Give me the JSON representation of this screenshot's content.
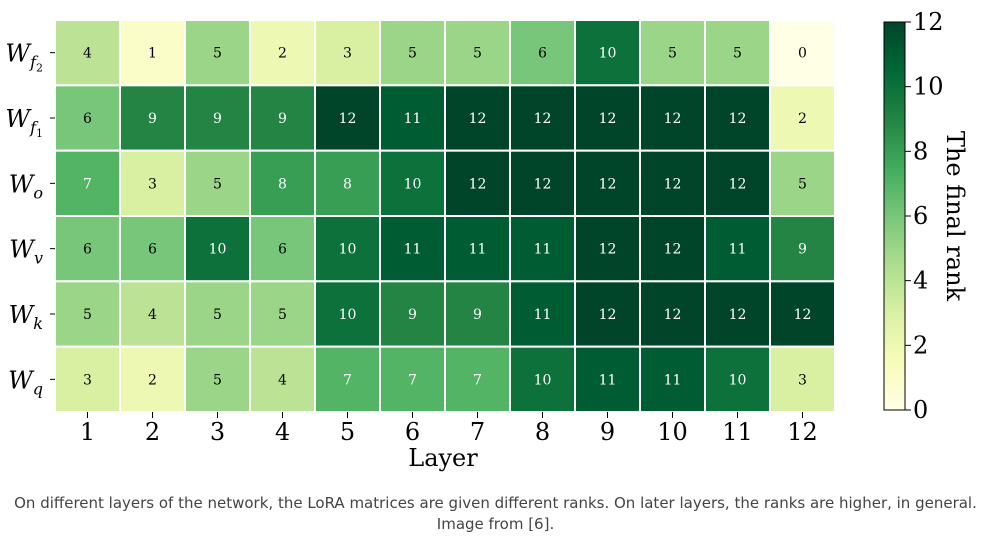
{
  "chart_data": {
    "type": "heatmap",
    "xlabel": "Layer",
    "x_categories": [
      "1",
      "2",
      "3",
      "4",
      "5",
      "6",
      "7",
      "8",
      "9",
      "10",
      "11",
      "12"
    ],
    "y_categories": [
      {
        "base": "W",
        "sub": "f",
        "subsub": "2"
      },
      {
        "base": "W",
        "sub": "f",
        "subsub": "1"
      },
      {
        "base": "W",
        "sub": "o",
        "subsub": ""
      },
      {
        "base": "W",
        "sub": "v",
        "subsub": ""
      },
      {
        "base": "W",
        "sub": "k",
        "subsub": ""
      },
      {
        "base": "W",
        "sub": "q",
        "subsub": ""
      }
    ],
    "values": [
      [
        4,
        1,
        5,
        2,
        3,
        5,
        5,
        6,
        10,
        5,
        5,
        0
      ],
      [
        6,
        9,
        9,
        9,
        12,
        11,
        12,
        12,
        12,
        12,
        12,
        2
      ],
      [
        7,
        3,
        5,
        8,
        8,
        10,
        12,
        12,
        12,
        12,
        12,
        5
      ],
      [
        6,
        6,
        10,
        6,
        10,
        11,
        11,
        11,
        12,
        12,
        11,
        9
      ],
      [
        5,
        4,
        5,
        5,
        10,
        9,
        9,
        11,
        12,
        12,
        12,
        12
      ],
      [
        3,
        2,
        5,
        4,
        7,
        7,
        7,
        10,
        11,
        11,
        10,
        3
      ]
    ],
    "colorbar": {
      "label": "The final rank",
      "range": [
        0,
        12
      ],
      "ticks": [
        "0",
        "2",
        "4",
        "6",
        "8",
        "10",
        "12"
      ],
      "colormap": [
        "#ffffe5",
        "#f7fcb9",
        "#d9f0a3",
        "#addd8e",
        "#78c679",
        "#41ab5d",
        "#238443",
        "#006837",
        "#004529"
      ]
    }
  },
  "caption": "On different layers of the network, the LoRA matrices are given different ranks. On later layers, the ranks are higher, in general. Image from [6]."
}
